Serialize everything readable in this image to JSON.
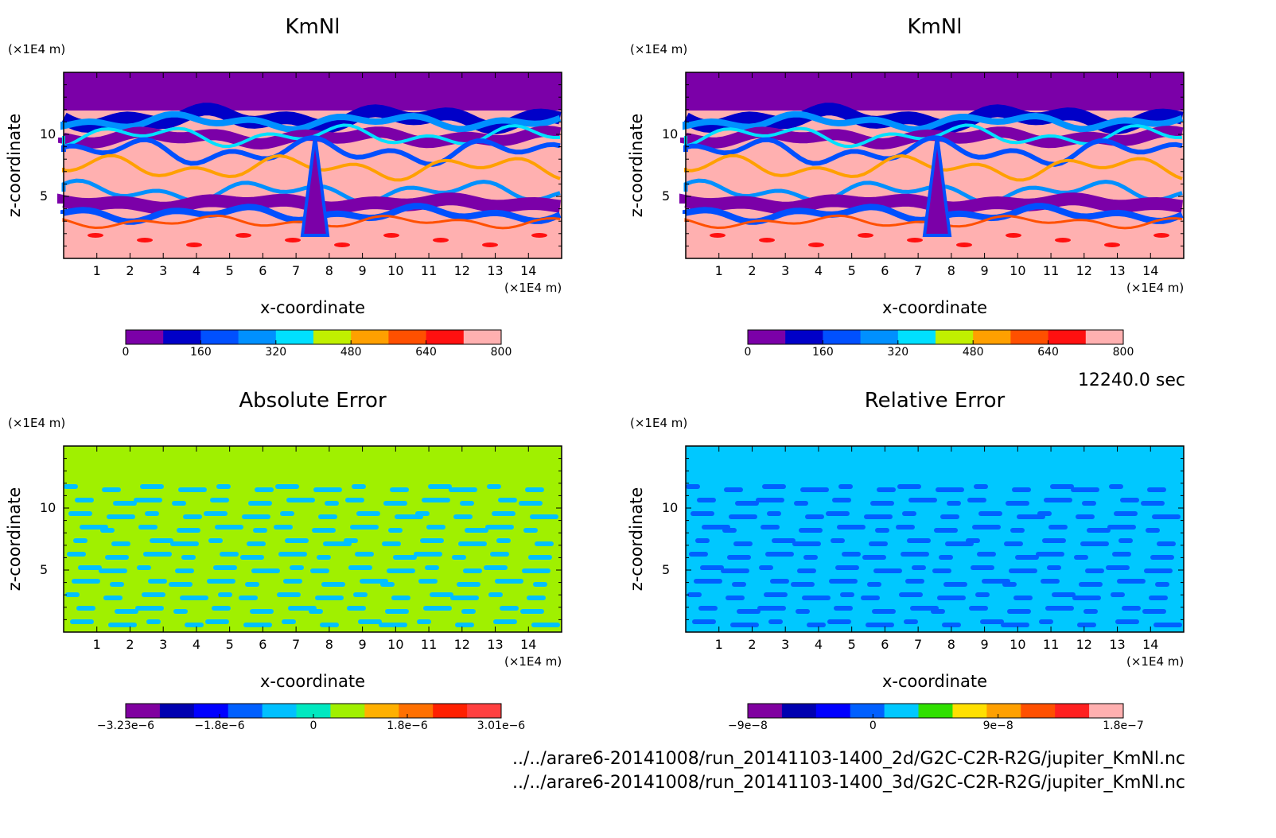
{
  "chart_data": [
    {
      "type": "heatmap",
      "title": "KmNl",
      "xlabel": "x-coordinate",
      "ylabel": "z-coordinate",
      "x_unit": "(×1E4 m)",
      "y_unit": "(×1E4 m)",
      "xlim": [
        0,
        15
      ],
      "ylim": [
        0,
        15
      ],
      "x_ticks": [
        "1",
        "2",
        "3",
        "4",
        "5",
        "6",
        "7",
        "8",
        "9",
        "10",
        "11",
        "12",
        "13",
        "14"
      ],
      "y_ticks": [
        "5",
        "10"
      ],
      "colorbar": {
        "colors": [
          "#7b00a8",
          "#0000c8",
          "#0050ff",
          "#0090ff",
          "#00e0ff",
          "#c0f000",
          "#ffa000",
          "#ff5000",
          "#ff1010",
          "#ffb0b0"
        ],
        "ticks": [
          "0",
          "160",
          "320",
          "480",
          "640",
          "800"
        ]
      }
    },
    {
      "type": "heatmap",
      "title": "KmNl",
      "xlabel": "x-coordinate",
      "ylabel": "z-coordinate",
      "x_unit": "(×1E4 m)",
      "y_unit": "(×1E4 m)",
      "xlim": [
        0,
        15
      ],
      "ylim": [
        0,
        15
      ],
      "x_ticks": [
        "1",
        "2",
        "3",
        "4",
        "5",
        "6",
        "7",
        "8",
        "9",
        "10",
        "11",
        "12",
        "13",
        "14"
      ],
      "y_ticks": [
        "5",
        "10"
      ],
      "colorbar": {
        "colors": [
          "#7b00a8",
          "#0000c8",
          "#0050ff",
          "#0090ff",
          "#00e0ff",
          "#c0f000",
          "#ffa000",
          "#ff5000",
          "#ff1010",
          "#ffb0b0"
        ],
        "ticks": [
          "0",
          "160",
          "320",
          "480",
          "640",
          "800"
        ]
      }
    },
    {
      "type": "heatmap",
      "title": "Absolute Error",
      "xlabel": "x-coordinate",
      "ylabel": "z-coordinate",
      "x_unit": "(×1E4 m)",
      "y_unit": "(×1E4 m)",
      "xlim": [
        0,
        15
      ],
      "ylim": [
        0,
        15
      ],
      "x_ticks": [
        "1",
        "2",
        "3",
        "4",
        "5",
        "6",
        "7",
        "8",
        "9",
        "10",
        "11",
        "12",
        "13",
        "14"
      ],
      "y_ticks": [
        "5",
        "10"
      ],
      "colorbar": {
        "colors": [
          "#8000a0",
          "#0000b0",
          "#0000ff",
          "#0060ff",
          "#00c0ff",
          "#00e8c0",
          "#a0f000",
          "#ffb000",
          "#ff7000",
          "#ff2000",
          "#ff4040"
        ],
        "ticks": [
          "−3.23e−6",
          "−1.8e−6",
          "0",
          "1.8e−6",
          "3.01e−6"
        ]
      }
    },
    {
      "type": "heatmap",
      "title": "Relative Error",
      "xlabel": "x-coordinate",
      "ylabel": "z-coordinate",
      "x_unit": "(×1E4 m)",
      "y_unit": "(×1E4 m)",
      "xlim": [
        0,
        15
      ],
      "ylim": [
        0,
        15
      ],
      "x_ticks": [
        "1",
        "2",
        "3",
        "4",
        "5",
        "6",
        "7",
        "8",
        "9",
        "10",
        "11",
        "12",
        "13",
        "14"
      ],
      "y_ticks": [
        "5",
        "10"
      ],
      "colorbar": {
        "colors": [
          "#8000a0",
          "#0000b0",
          "#0000ff",
          "#0060ff",
          "#00c8ff",
          "#30e000",
          "#ffe000",
          "#ffa000",
          "#ff5000",
          "#ff2020",
          "#ffb0b0"
        ],
        "ticks": [
          "−9e−8",
          "0",
          "9e−8",
          "1.8e−7"
        ]
      }
    }
  ],
  "time_label": "12240.0 sec",
  "files": [
    "../../arare6-20141008/run_20141103-1400_2d/G2C-C2R-R2G/jupiter_KmNl.nc",
    "../../arare6-20141008/run_20141103-1400_3d/G2C-C2R-R2G/jupiter_KmNl.nc"
  ]
}
